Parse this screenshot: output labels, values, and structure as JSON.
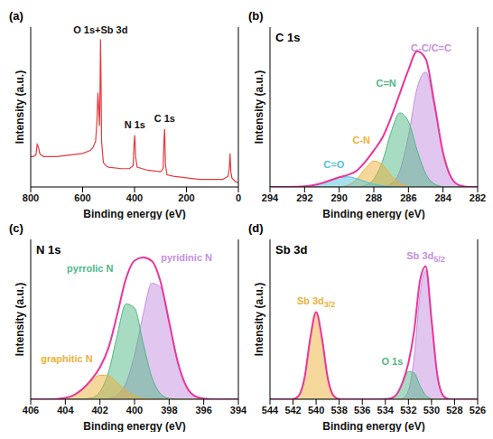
{
  "chart_data": [
    {
      "type": "line",
      "label": "(a)",
      "xlabel": "Binding energy (eV)",
      "ylabel": "Intensity (a.u.)",
      "xlim": [
        800,
        0
      ],
      "xticks": [
        800,
        600,
        400,
        200,
        0
      ],
      "ylim": [
        0,
        1.05
      ],
      "tick_labels": "x",
      "x": [
        800,
        790,
        780,
        775,
        770,
        765,
        760,
        750,
        700,
        650,
        600,
        570,
        560,
        550,
        545,
        541,
        539,
        535,
        533,
        531,
        529,
        527,
        520,
        510,
        500,
        450,
        420,
        405,
        402,
        399,
        396,
        390,
        350,
        300,
        290,
        286,
        284,
        281,
        275,
        250,
        200,
        150,
        100,
        60,
        40,
        35,
        32,
        29,
        25,
        15,
        5,
        0
      ],
      "series": [
        {
          "type": "line",
          "color": "#e8383d",
          "values": [
            0.2,
            0.2,
            0.21,
            0.28,
            0.26,
            0.22,
            0.21,
            0.2,
            0.2,
            0.21,
            0.22,
            0.24,
            0.26,
            0.3,
            0.42,
            0.62,
            0.55,
            0.4,
            0.62,
            0.97,
            0.7,
            0.3,
            0.16,
            0.14,
            0.13,
            0.12,
            0.12,
            0.14,
            0.28,
            0.34,
            0.2,
            0.13,
            0.11,
            0.1,
            0.12,
            0.33,
            0.38,
            0.15,
            0.08,
            0.07,
            0.06,
            0.05,
            0.05,
            0.05,
            0.07,
            0.12,
            0.22,
            0.1,
            0.06,
            0.04,
            0.03,
            0.03
          ]
        }
      ],
      "annotations": [
        {
          "text": "O 1s+Sb 3d",
          "x": 531
        },
        {
          "text": "N 1s",
          "x": 399
        },
        {
          "text": "C 1s",
          "x": 284
        }
      ]
    },
    {
      "type": "line",
      "label": "(b)",
      "title": "C 1s",
      "xlabel": "Binding energy (eV)",
      "ylabel": "Intensity (a.u.)",
      "xlim": [
        294,
        282
      ],
      "xticks": [
        294,
        292,
        290,
        288,
        286,
        284,
        282
      ],
      "ylim": [
        0,
        1.1
      ],
      "tick_labels": "x",
      "x": [
        282,
        282.5,
        283,
        283.5,
        284,
        284.5,
        285,
        285.5,
        286,
        286.5,
        287,
        287.5,
        288,
        288.5,
        289,
        289.5,
        290,
        290.5,
        291,
        291.5,
        292,
        292.5,
        293,
        293.5,
        294
      ],
      "series": [
        {
          "name": "C-C/C=C",
          "type": "area",
          "color": "#c48fe0",
          "values": [
            0,
            0,
            0.009,
            0.059,
            0.233,
            0.554,
            0.79,
            0.68,
            0.35,
            0.108,
            0.02,
            0.002,
            0,
            0,
            0,
            0,
            0,
            0,
            0,
            0,
            0,
            0,
            0,
            0,
            0
          ]
        },
        {
          "name": "C=N",
          "type": "area",
          "color": "#4fb886",
          "values": [
            0,
            0,
            0,
            0,
            0.003,
            0.021,
            0.091,
            0.253,
            0.451,
            0.51,
            0.378,
            0.177,
            0.054,
            0.01,
            0.001,
            0,
            0,
            0,
            0,
            0,
            0,
            0,
            0,
            0,
            0
          ]
        },
        {
          "name": "C-N",
          "type": "area",
          "color": "#eeb03a",
          "values": [
            0,
            0,
            0,
            0,
            0,
            0,
            0,
            0,
            0.005,
            0.024,
            0.079,
            0.153,
            0.178,
            0.125,
            0.052,
            0.013,
            0.002,
            0,
            0,
            0,
            0,
            0,
            0,
            0,
            0
          ]
        },
        {
          "name": "C=O",
          "type": "area",
          "color": "#4fc3dc",
          "values": [
            0,
            0,
            0,
            0,
            0,
            0,
            0,
            0,
            0,
            0,
            0.002,
            0.008,
            0.019,
            0.038,
            0.058,
            0.07,
            0.065,
            0.047,
            0.026,
            0.012,
            0.004,
            0.001,
            0,
            0,
            0
          ]
        },
        {
          "type": "line",
          "color": "#e8379b",
          "values": [
            0,
            0,
            0.009,
            0.059,
            0.236,
            0.575,
            0.881,
            0.933,
            0.806,
            0.642,
            0.479,
            0.34,
            0.251,
            0.173,
            0.111,
            0.083,
            0.067,
            0.047,
            0.026,
            0.012,
            0.004,
            0.001,
            0,
            0,
            0
          ]
        }
      ]
    },
    {
      "type": "line",
      "label": "(c)",
      "title": "N 1s",
      "xlabel": "Binding energy (eV)",
      "ylabel": "Intensity (a.u.)",
      "xlim": [
        406,
        394
      ],
      "xticks": [
        406,
        404,
        402,
        400,
        398,
        396,
        394
      ],
      "ylim": [
        0,
        1.1
      ],
      "tick_labels": "x",
      "x": [
        394,
        394.5,
        395,
        395.5,
        396,
        396.5,
        397,
        397.5,
        398,
        398.5,
        399,
        399.5,
        400,
        400.5,
        401,
        401.5,
        402,
        402.5,
        403,
        403.5,
        404,
        404.5,
        405,
        405.5,
        406
      ],
      "series": [
        {
          "name": "pyridinic N",
          "type": "area",
          "color": "#c48fe0",
          "values": [
            0,
            0,
            0,
            0,
            0.004,
            0.021,
            0.087,
            0.254,
            0.526,
            0.771,
            0.798,
            0.584,
            0.303,
            0.111,
            0.029,
            0.005,
            0.001,
            0,
            0,
            0,
            0,
            0,
            0,
            0,
            0
          ]
        },
        {
          "name": "pyrrolic N",
          "type": "area",
          "color": "#4fb886",
          "values": [
            0,
            0,
            0,
            0,
            0,
            0,
            0,
            0.001,
            0.006,
            0.038,
            0.152,
            0.385,
            0.628,
            0.656,
            0.44,
            0.189,
            0.052,
            0.009,
            0.001,
            0,
            0,
            0,
            0,
            0,
            0
          ]
        },
        {
          "name": "graphitic N",
          "type": "area",
          "color": "#eeb03a",
          "values": [
            0,
            0,
            0,
            0,
            0,
            0,
            0,
            0,
            0,
            0,
            0.001,
            0.006,
            0.023,
            0.06,
            0.115,
            0.161,
            0.166,
            0.126,
            0.07,
            0.029,
            0.009,
            0.002,
            0,
            0,
            0
          ]
        },
        {
          "type": "line",
          "color": "#e8379b",
          "values": [
            0,
            0,
            0,
            0,
            0.004,
            0.021,
            0.087,
            0.255,
            0.532,
            0.809,
            0.951,
            0.975,
            0.954,
            0.827,
            0.584,
            0.355,
            0.219,
            0.135,
            0.071,
            0.029,
            0.009,
            0.002,
            0,
            0,
            0
          ]
        }
      ]
    },
    {
      "type": "line",
      "label": "(d)",
      "title": "Sb 3d",
      "xlabel": "Binding energy (eV)",
      "ylabel": "Intensity (a.u.)",
      "xlim": [
        544,
        526
      ],
      "xticks": [
        544,
        542,
        540,
        538,
        536,
        534,
        532,
        530,
        528,
        526
      ],
      "ylim": [
        0,
        1.1
      ],
      "tick_labels": "x",
      "x": [
        526,
        526.5,
        527,
        527.5,
        528,
        528.5,
        529,
        529.5,
        530,
        530.5,
        531,
        531.5,
        532,
        532.5,
        533,
        533.5,
        534,
        534.5,
        535,
        535.5,
        536,
        536.5,
        537,
        537.5,
        538,
        538.5,
        539,
        539.5,
        540,
        540.5,
        541,
        541.5,
        542,
        542.5,
        543,
        543.5,
        544
      ],
      "series": [
        {
          "name": "Sb 3d5/2",
          "type": "area",
          "color": "#c48fe0",
          "values": [
            0,
            0,
            0,
            0,
            0,
            0.002,
            0.026,
            0.168,
            0.546,
            0.888,
            0.721,
            0.292,
            0.059,
            0.006,
            0,
            0,
            0,
            0,
            0,
            0,
            0,
            0,
            0,
            0,
            0,
            0,
            0,
            0,
            0,
            0,
            0,
            0,
            0,
            0,
            0,
            0,
            0
          ]
        },
        {
          "name": "O 1s",
          "type": "area",
          "color": "#4fb886",
          "values": [
            0,
            0,
            0,
            0,
            0,
            0,
            0,
            0,
            0.004,
            0.027,
            0.094,
            0.18,
            0.191,
            0.112,
            0.036,
            0.007,
            0.001,
            0,
            0,
            0,
            0,
            0,
            0,
            0,
            0,
            0,
            0,
            0,
            0,
            0,
            0,
            0,
            0,
            0,
            0,
            0,
            0
          ]
        },
        {
          "name": "Sb 3d3/2",
          "type": "area",
          "color": "#eeb03a",
          "values": [
            0,
            0,
            0,
            0,
            0,
            0,
            0,
            0,
            0,
            0,
            0,
            0,
            0,
            0,
            0,
            0,
            0,
            0,
            0,
            0,
            0,
            0,
            0,
            0,
            0.002,
            0.026,
            0.149,
            0.424,
            0.6,
            0.424,
            0.149,
            0.026,
            0.002,
            0,
            0,
            0,
            0
          ]
        },
        {
          "type": "line",
          "color": "#e8379b",
          "values": [
            0,
            0,
            0,
            0,
            0,
            0.002,
            0.026,
            0.168,
            0.55,
            0.915,
            0.815,
            0.472,
            0.25,
            0.118,
            0.036,
            0.007,
            0.001,
            0,
            0,
            0,
            0,
            0,
            0,
            0,
            0.002,
            0.026,
            0.149,
            0.424,
            0.6,
            0.424,
            0.149,
            0.026,
            0.002,
            0,
            0,
            0,
            0
          ]
        }
      ]
    }
  ]
}
